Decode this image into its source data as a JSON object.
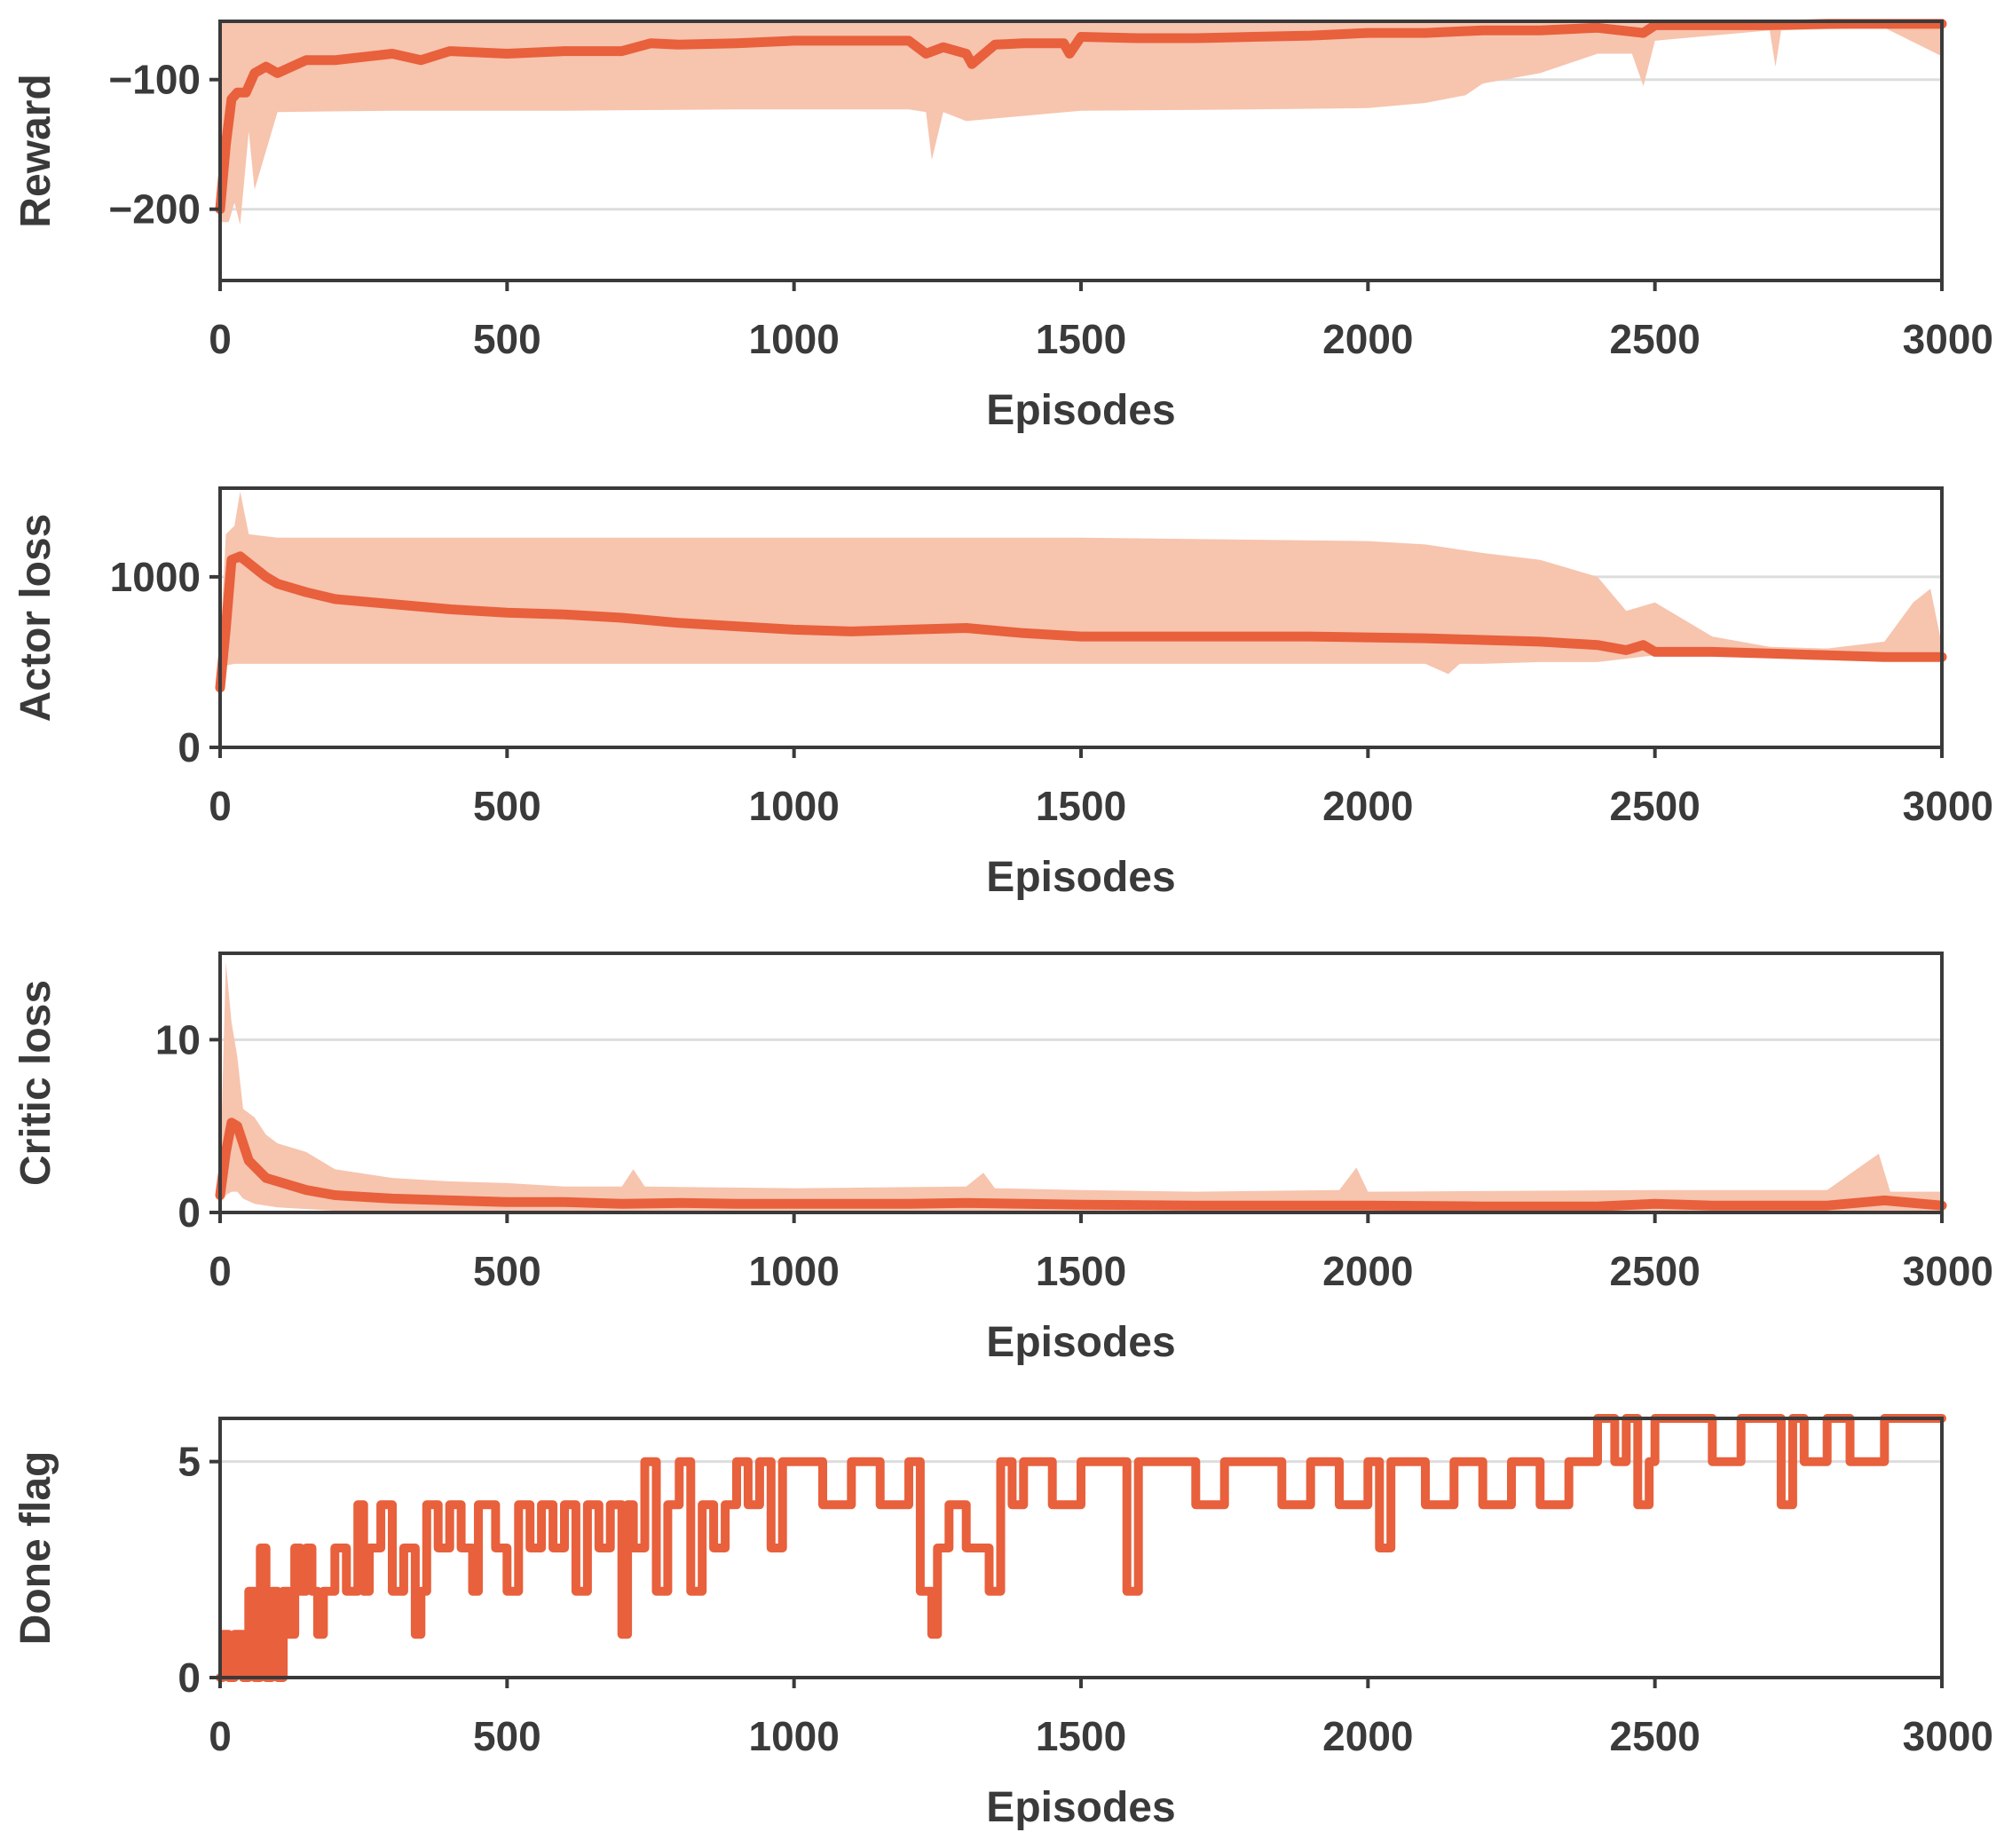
{
  "colors": {
    "line": "#E8603C",
    "band": "#F7C4AE",
    "axis": "#3a3a3a",
    "grid": "#dddddd"
  },
  "chart_data": [
    {
      "type": "line",
      "xlabel": "Episodes",
      "ylabel": "Reward",
      "xlim": [
        0,
        3000
      ],
      "ylim": [
        -255,
        -55
      ],
      "xticks": [
        0,
        500,
        1000,
        1500,
        2000,
        2500,
        3000
      ],
      "xtick_labels": [
        "0",
        "500",
        "1000",
        "1500",
        "2000",
        "2500",
        "3000"
      ],
      "yticks": [
        -200,
        -100
      ],
      "ytick_labels": [
        "−200",
        "−100"
      ],
      "grid": "y",
      "series": [
        {
          "name": "mean",
          "x": [
            0,
            10,
            20,
            30,
            45,
            60,
            80,
            100,
            150,
            200,
            300,
            350,
            400,
            500,
            600,
            700,
            750,
            800,
            900,
            1000,
            1100,
            1200,
            1230,
            1260,
            1300,
            1310,
            1350,
            1400,
            1470,
            1480,
            1500,
            1600,
            1700,
            1800,
            1900,
            2000,
            2100,
            2200,
            2300,
            2400,
            2480,
            2500,
            2600,
            2700,
            2800,
            2900,
            3000
          ],
          "y": [
            -200,
            -150,
            -115,
            -110,
            -110,
            -95,
            -90,
            -95,
            -85,
            -85,
            -80,
            -85,
            -78,
            -80,
            -78,
            -78,
            -72,
            -73,
            -72,
            -70,
            -70,
            -70,
            -80,
            -75,
            -80,
            -88,
            -73,
            -72,
            -72,
            -80,
            -67,
            -68,
            -68,
            -67,
            -66,
            -64,
            -64,
            -62,
            -62,
            -60,
            -64,
            -58,
            -58,
            -58,
            -57,
            -57,
            -57
          ]
        },
        {
          "name": "band",
          "x": [
            0,
            15,
            25,
            35,
            50,
            60,
            100,
            300,
            600,
            900,
            1200,
            1230,
            1240,
            1260,
            1300,
            1500,
            1800,
            2000,
            2100,
            2170,
            2200,
            2300,
            2400,
            2460,
            2480,
            2500,
            2700,
            2710,
            2720,
            2900,
            3000
          ],
          "lower": [
            -210,
            -210,
            -195,
            -212,
            -140,
            -185,
            -125,
            -124,
            -124,
            -123,
            -123,
            -125,
            -162,
            -125,
            -132,
            -124,
            -123,
            -122,
            -118,
            -112,
            -103,
            -95,
            -80,
            -80,
            -105,
            -70,
            -62,
            -90,
            -62,
            -60,
            -82
          ],
          "upper": [
            -55,
            -55,
            -55,
            -55,
            -55,
            -55,
            -55,
            -55,
            -55,
            -55,
            -55,
            -55,
            -55,
            -55,
            -55,
            -55,
            -55,
            -55,
            -55,
            -55,
            -55,
            -55,
            -55,
            -55,
            -55,
            -55,
            -55,
            -55,
            -55,
            -55,
            -55
          ]
        }
      ]
    },
    {
      "type": "line",
      "xlabel": "Episodes",
      "ylabel": "Actor loss",
      "xlim": [
        0,
        3000
      ],
      "ylim": [
        0,
        1520
      ],
      "xticks": [
        0,
        500,
        1000,
        1500,
        2000,
        2500,
        3000
      ],
      "xtick_labels": [
        "0",
        "500",
        "1000",
        "1500",
        "2000",
        "2500",
        "3000"
      ],
      "yticks": [
        0,
        1000
      ],
      "ytick_labels": [
        "0",
        "1000"
      ],
      "grid": "y",
      "series": [
        {
          "name": "mean",
          "x": [
            0,
            10,
            20,
            35,
            50,
            80,
            100,
            150,
            200,
            300,
            400,
            500,
            600,
            700,
            800,
            900,
            1000,
            1100,
            1200,
            1300,
            1400,
            1500,
            1600,
            1700,
            1800,
            1900,
            2000,
            2100,
            2200,
            2300,
            2400,
            2450,
            2480,
            2500,
            2600,
            2700,
            2800,
            2900,
            3000
          ],
          "y": [
            350,
            700,
            1100,
            1120,
            1080,
            1000,
            960,
            910,
            870,
            840,
            810,
            790,
            780,
            760,
            730,
            710,
            690,
            680,
            690,
            700,
            670,
            650,
            650,
            650,
            650,
            650,
            645,
            640,
            630,
            620,
            600,
            570,
            600,
            560,
            560,
            550,
            540,
            530,
            530
          ]
        },
        {
          "name": "band",
          "x": [
            0,
            10,
            25,
            35,
            50,
            100,
            500,
            1000,
            1500,
            2000,
            2100,
            2140,
            2160,
            2200,
            2300,
            2400,
            2450,
            2500,
            2600,
            2700,
            2800,
            2900,
            2950,
            2980,
            3000
          ],
          "lower": [
            350,
            480,
            490,
            490,
            490,
            490,
            490,
            490,
            490,
            490,
            490,
            430,
            490,
            490,
            500,
            500,
            520,
            540,
            540,
            540,
            540,
            530,
            520,
            520,
            520
          ],
          "upper": [
            600,
            1250,
            1300,
            1500,
            1250,
            1230,
            1230,
            1230,
            1230,
            1210,
            1190,
            1170,
            1160,
            1140,
            1100,
            1000,
            800,
            850,
            650,
            590,
            580,
            620,
            850,
            930,
            600
          ]
        }
      ]
    },
    {
      "type": "line",
      "xlabel": "Episodes",
      "ylabel": "Critic loss",
      "xlim": [
        0,
        3000
      ],
      "ylim": [
        0,
        15
      ],
      "xticks": [
        0,
        500,
        1000,
        1500,
        2000,
        2500,
        3000
      ],
      "xtick_labels": [
        "0",
        "500",
        "1000",
        "1500",
        "2000",
        "2500",
        "3000"
      ],
      "yticks": [
        0,
        10
      ],
      "ytick_labels": [
        "0",
        "10"
      ],
      "grid": "y",
      "series": [
        {
          "name": "mean",
          "x": [
            0,
            10,
            20,
            30,
            50,
            80,
            100,
            150,
            200,
            300,
            400,
            500,
            600,
            700,
            800,
            900,
            1000,
            1200,
            1300,
            1400,
            1500,
            1700,
            2000,
            2200,
            2400,
            2500,
            2600,
            2800,
            2900,
            3000
          ],
          "y": [
            1,
            3.5,
            5.2,
            5.0,
            3.0,
            2.0,
            1.8,
            1.3,
            1.0,
            0.8,
            0.7,
            0.6,
            0.6,
            0.5,
            0.55,
            0.5,
            0.5,
            0.5,
            0.55,
            0.5,
            0.45,
            0.4,
            0.4,
            0.35,
            0.35,
            0.5,
            0.4,
            0.4,
            0.7,
            0.4
          ]
        },
        {
          "name": "band",
          "x": [
            0,
            10,
            20,
            30,
            40,
            60,
            80,
            100,
            150,
            200,
            300,
            400,
            500,
            600,
            700,
            720,
            740,
            1000,
            1300,
            1330,
            1350,
            1500,
            1700,
            1950,
            1980,
            2000,
            2500,
            2800,
            2890,
            2910,
            3000
          ],
          "lower": [
            0.5,
            1.0,
            1.2,
            1.2,
            0.8,
            0.5,
            0.4,
            0.3,
            0.2,
            0.1,
            0.05,
            0.05,
            0.05,
            0.05,
            0.05,
            0.05,
            0.05,
            0.05,
            0.05,
            0.05,
            0.05,
            0.05,
            0.05,
            0.05,
            0.05,
            0.05,
            0.05,
            0.05,
            0.05,
            0.05,
            0.05
          ],
          "upper": [
            2.0,
            14.5,
            11.0,
            9.0,
            6.0,
            5.5,
            4.5,
            4.0,
            3.5,
            2.5,
            2.0,
            1.8,
            1.7,
            1.5,
            1.5,
            2.5,
            1.5,
            1.4,
            1.5,
            2.3,
            1.4,
            1.3,
            1.2,
            1.3,
            2.6,
            1.2,
            1.3,
            1.3,
            3.4,
            1.2,
            1.2
          ]
        }
      ]
    },
    {
      "type": "line",
      "xlabel": "Episodes",
      "ylabel": "Done flag",
      "xlim": [
        0,
        3000
      ],
      "ylim": [
        0,
        6
      ],
      "xticks": [
        0,
        500,
        1000,
        1500,
        2000,
        2500,
        3000
      ],
      "xtick_labels": [
        "0",
        "500",
        "1000",
        "1500",
        "2000",
        "2500",
        "3000"
      ],
      "yticks": [
        0,
        5
      ],
      "ytick_labels": [
        "0",
        "5"
      ],
      "grid": "y",
      "series": [
        {
          "name": "done",
          "x": [
            0,
            5,
            15,
            25,
            40,
            50,
            60,
            70,
            80,
            90,
            100,
            110,
            120,
            130,
            140,
            150,
            160,
            170,
            180,
            200,
            220,
            240,
            250,
            260,
            280,
            300,
            320,
            340,
            350,
            360,
            380,
            400,
            420,
            440,
            450,
            480,
            500,
            520,
            540,
            560,
            580,
            600,
            620,
            640,
            660,
            680,
            700,
            710,
            720,
            740,
            760,
            780,
            800,
            820,
            840,
            860,
            880,
            900,
            920,
            940,
            960,
            980,
            1000,
            1050,
            1100,
            1150,
            1200,
            1220,
            1240,
            1250,
            1270,
            1300,
            1340,
            1360,
            1380,
            1400,
            1450,
            1500,
            1550,
            1580,
            1600,
            1620,
            1700,
            1750,
            1800,
            1850,
            1900,
            1950,
            2000,
            2020,
            2040,
            2100,
            2150,
            2200,
            2250,
            2300,
            2350,
            2380,
            2400,
            2430,
            2450,
            2470,
            2490,
            2500,
            2550,
            2600,
            2650,
            2700,
            2720,
            2740,
            2760,
            2800,
            2820,
            2840,
            2900,
            3000
          ],
          "y": [
            0,
            1,
            0,
            1,
            0,
            2,
            0,
            3,
            0,
            2,
            0,
            2,
            1,
            3,
            2,
            3,
            2,
            1,
            2,
            3,
            2,
            4,
            2,
            3,
            4,
            2,
            3,
            1,
            2,
            4,
            3,
            4,
            3,
            2,
            4,
            3,
            2,
            4,
            3,
            4,
            3,
            4,
            2,
            4,
            3,
            4,
            1,
            4,
            3,
            5,
            2,
            4,
            5,
            2,
            4,
            3,
            4,
            5,
            4,
            5,
            3,
            5,
            5,
            4,
            5,
            4,
            5,
            2,
            1,
            3,
            4,
            3,
            2,
            5,
            4,
            5,
            4,
            5,
            5,
            2,
            5,
            5,
            4,
            5,
            5,
            4,
            5,
            4,
            5,
            3,
            5,
            4,
            5,
            4,
            5,
            4,
            5,
            5,
            6,
            5,
            6,
            4,
            5,
            6,
            6,
            5,
            6,
            6,
            4,
            6,
            5,
            6,
            6,
            5,
            6,
            6
          ]
        }
      ]
    }
  ]
}
